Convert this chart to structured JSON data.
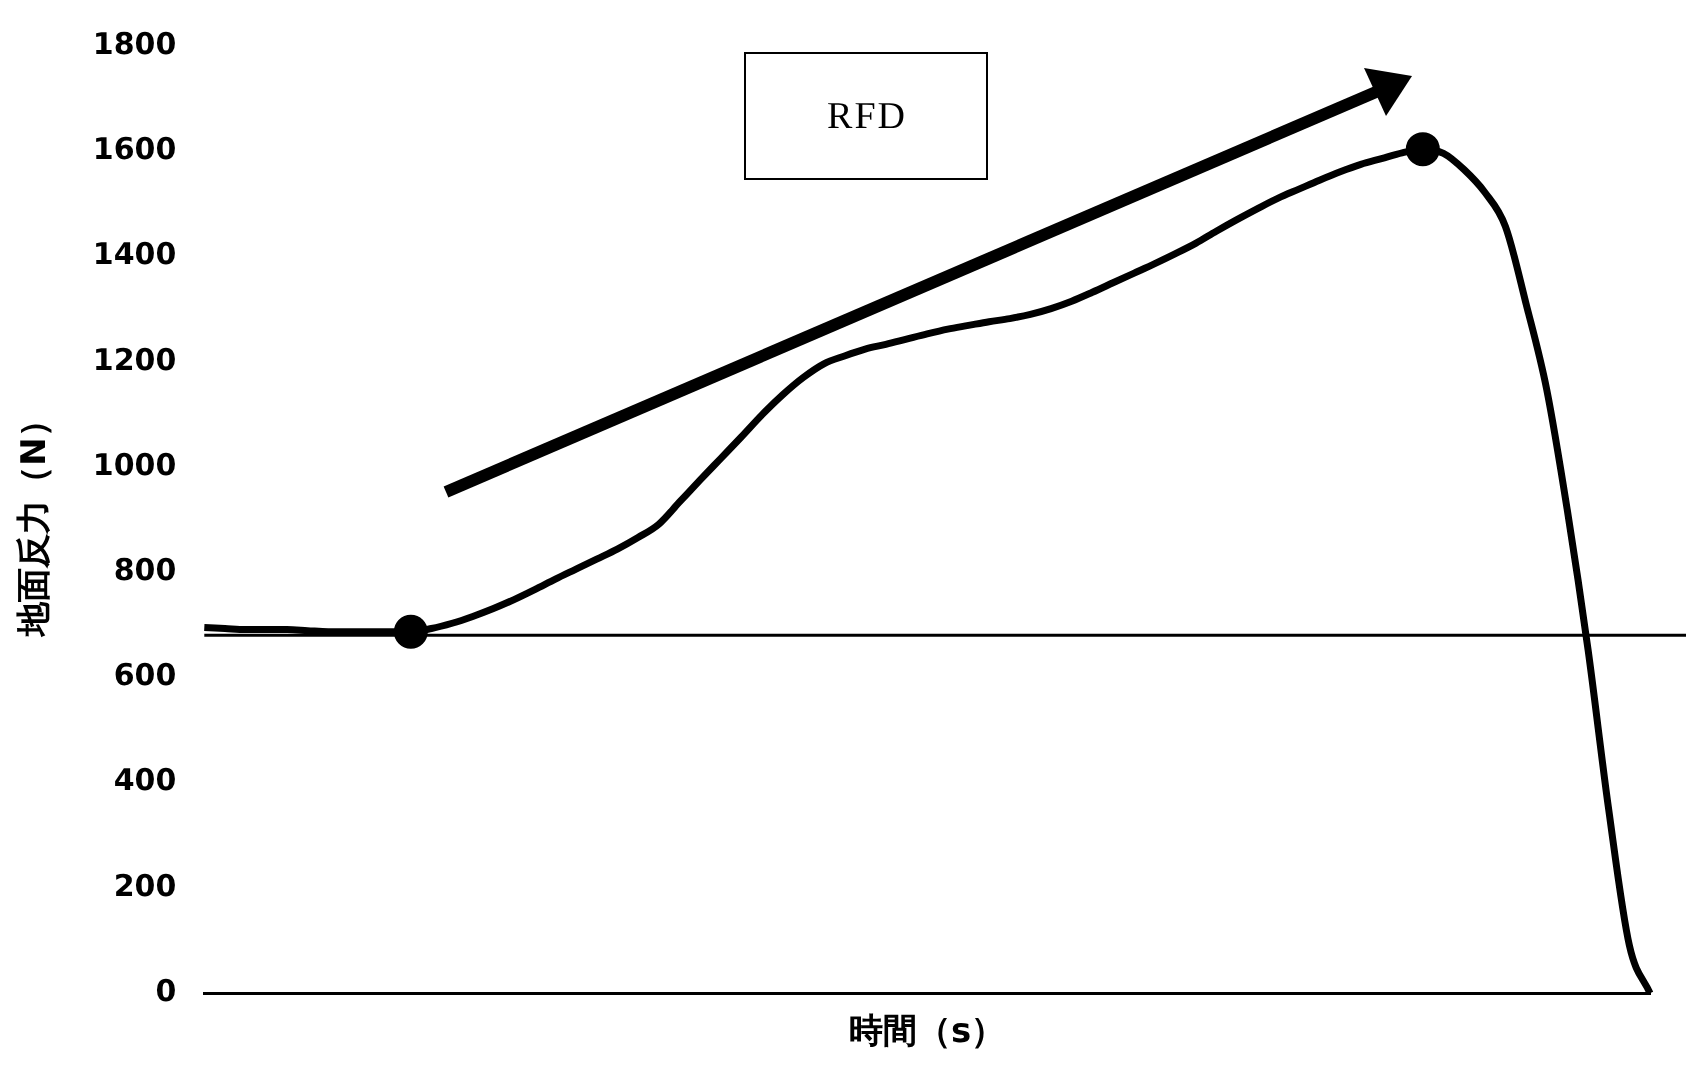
{
  "chart_data": {
    "type": "line",
    "xlabel": "時間（s）",
    "ylabel": "地面反力（N）",
    "annotations": [
      "RFD"
    ],
    "categories": [
      null,
      null,
      null,
      null,
      null,
      null,
      null,
      null,
      null,
      null,
      null,
      null,
      null,
      null,
      null,
      null,
      null,
      null,
      null,
      null,
      null,
      null,
      null,
      null,
      null,
      null,
      null,
      null,
      null,
      null,
      null,
      null,
      null,
      null,
      null,
      null,
      null,
      null,
      null,
      null,
      null,
      null,
      null,
      null,
      null,
      null,
      null,
      null,
      null,
      null,
      null,
      null,
      null,
      null,
      null,
      null,
      null,
      null,
      null,
      null,
      null,
      null,
      null,
      null,
      null,
      null,
      null,
      null,
      null,
      null,
      null
    ],
    "series": [
      {
        "color": "#000000",
        "marker": "none",
        "values": [
          695,
          693,
          691,
          691,
          691,
          689,
          687,
          687,
          687,
          687,
          687,
          693,
          703,
          716,
          731,
          748,
          767,
          787,
          806,
          825,
          844,
          866,
          891,
          933,
          975,
          1016,
          1057,
          1099,
          1137,
          1170,
          1196,
          1211,
          1224,
          1233,
          1243,
          1253,
          1262,
          1269,
          1276,
          1282,
          1290,
          1301,
          1315,
          1332,
          1350,
          1368,
          1386,
          1405,
          1425,
          1448,
          1470,
          1491,
          1511,
          1528,
          1545,
          1561,
          1575,
          1586,
          1597,
          1604,
          1596,
          1565,
          1522,
          1457,
          1310,
          1147,
          917,
          653,
          349,
          91,
          0
        ]
      },
      {
        "type": "scatter",
        "color": "#000000",
        "marker": "circle",
        "values": [
          null,
          null,
          null,
          null,
          null,
          null,
          null,
          null,
          null,
          null,
          687,
          null,
          null,
          null,
          null,
          null,
          null,
          null,
          null,
          null,
          null,
          null,
          null,
          null,
          null,
          null,
          null,
          null,
          null,
          null,
          null,
          null,
          null,
          null,
          null,
          null,
          null,
          null,
          null,
          null,
          null,
          null,
          null,
          null,
          null,
          null,
          null,
          null,
          null,
          null,
          null,
          null,
          null,
          null,
          null,
          null,
          null,
          null,
          null,
          1604,
          null,
          null,
          null,
          null,
          null,
          null,
          null,
          null,
          null,
          null,
          null
        ]
      }
    ],
    "ylim": [
      0,
      1800
    ],
    "yticks": [
      0,
      200,
      400,
      600,
      800,
      1000,
      1200,
      1400,
      1600,
      1800
    ],
    "grid": false,
    "legend": false,
    "tick_labels": "y",
    "ref_lines": [
      {
        "axis": "y",
        "value": 680,
        "color": "#000000"
      }
    ]
  }
}
